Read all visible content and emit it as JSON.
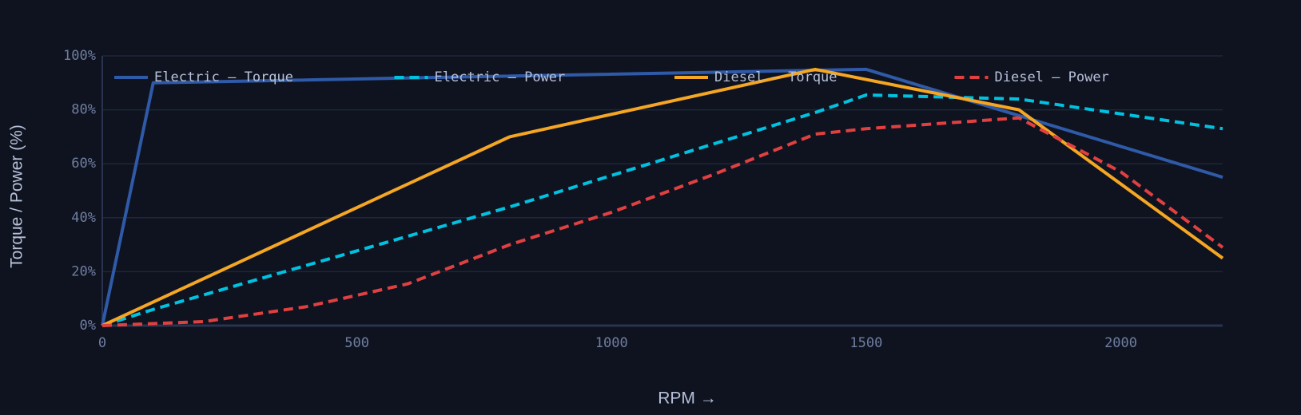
{
  "chart_data": {
    "type": "line",
    "x_label": "RPM →",
    "y_label": "Torque / Power (%)",
    "xlim": [
      0,
      2200
    ],
    "xticks": [
      0,
      500,
      1000,
      1500,
      2000
    ],
    "ylim": [
      0,
      100
    ],
    "yticks": [
      {
        "value": 0,
        "label": "0%"
      },
      {
        "value": 20,
        "label": "20%"
      },
      {
        "value": 40,
        "label": "40%"
      },
      {
        "value": 60,
        "label": "60%"
      },
      {
        "value": 80,
        "label": "80%"
      },
      {
        "value": 100,
        "label": "100%"
      }
    ],
    "grid": true,
    "legend": "top",
    "series": [
      {
        "name": "Electric — Torque",
        "color": "#2f5aa8",
        "dash": false,
        "x": [
          0,
          100,
          1500,
          2200
        ],
        "values": [
          0,
          90,
          95,
          55
        ]
      },
      {
        "name": "Electric — Power",
        "color": "#00c2e0",
        "dash": true,
        "x": [
          0,
          100,
          800,
          1400,
          1500,
          1800,
          2200
        ],
        "values": [
          0,
          6,
          44,
          79,
          85.5,
          84,
          73
        ]
      },
      {
        "name": "Diesel — Torque",
        "color": "#f5a623",
        "dash": false,
        "x": [
          0,
          800,
          1400,
          1800,
          2200
        ],
        "values": [
          0,
          70,
          95,
          80,
          25
        ]
      },
      {
        "name": "Diesel — Power",
        "color": "#e04040",
        "dash": true,
        "x": [
          0,
          200,
          400,
          600,
          800,
          1000,
          1200,
          1400,
          1500,
          1800,
          2000,
          2200
        ],
        "values": [
          0,
          1.5,
          7,
          15.5,
          30,
          42,
          56,
          71,
          73,
          77,
          57,
          29
        ]
      }
    ]
  }
}
